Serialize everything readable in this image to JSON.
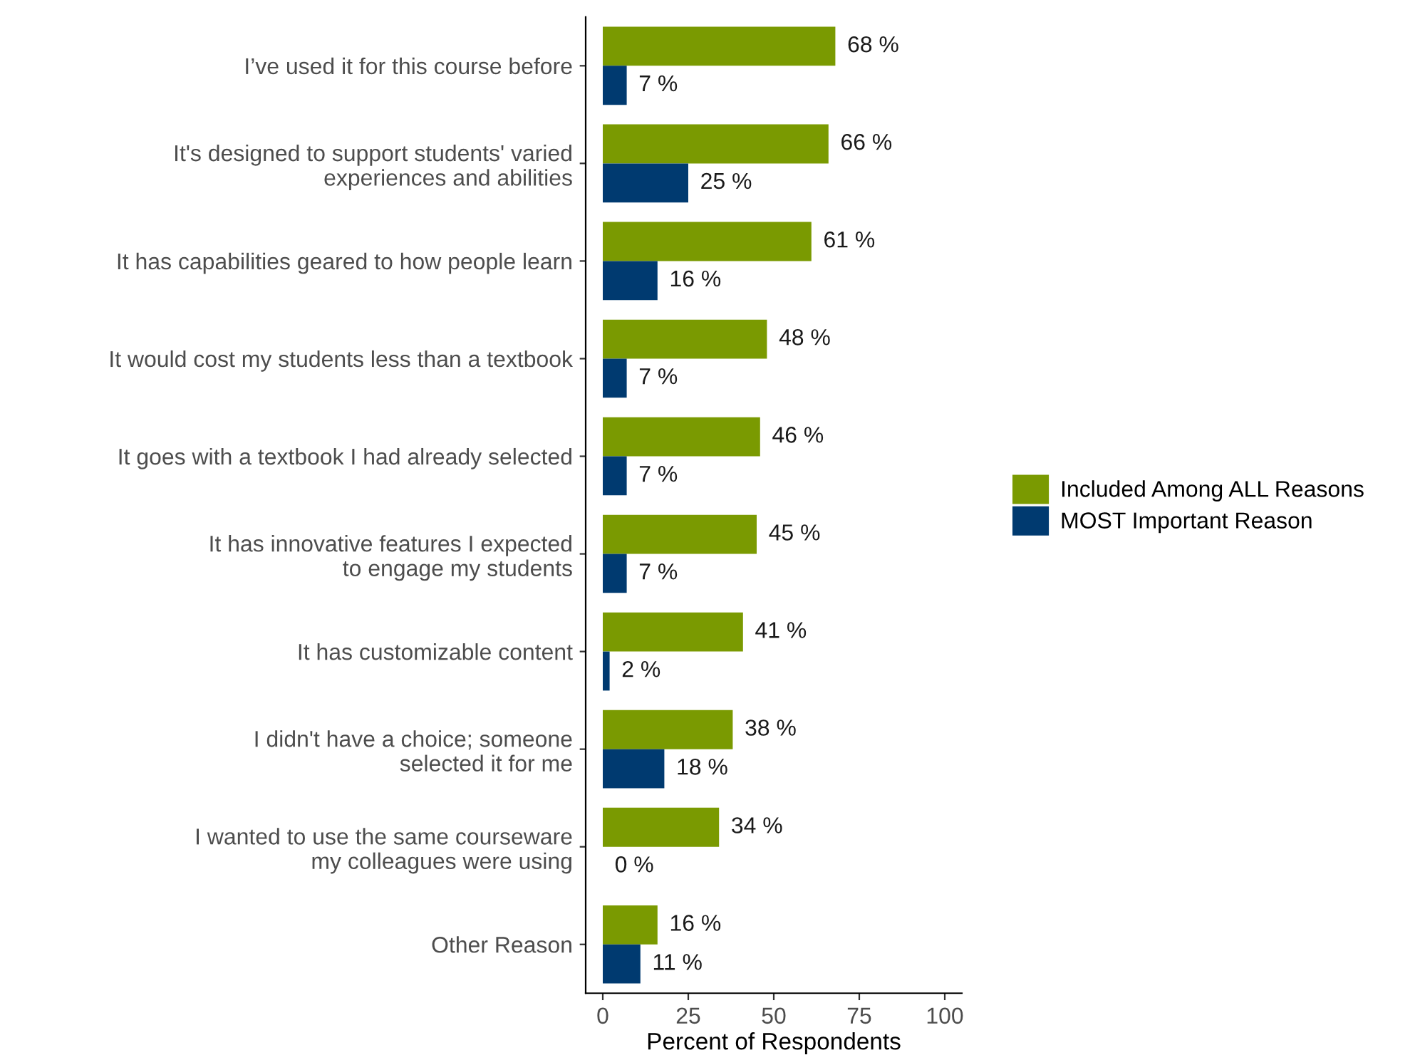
{
  "chart_data": {
    "type": "bar",
    "orientation": "horizontal",
    "xlabel": "Percent of Respondents",
    "categories": [
      "I’ve used it for this course before",
      "It's designed to support students' varied\nexperiences and abilities",
      "It has capabilities geared to how people learn",
      "It would cost my students less than a textbook",
      "It goes with a textbook I had already selected",
      "It has innovative features I expected\nto engage my students",
      "It has customizable content",
      "I didn't have a choice; someone\nselected it for me",
      "I wanted to use the same courseware\nmy colleagues were using",
      "Other Reason"
    ],
    "series": [
      {
        "name": "Included Among ALL Reasons",
        "color": "#7a9a01",
        "values": [
          68,
          66,
          61,
          48,
          46,
          45,
          41,
          38,
          34,
          16
        ],
        "value_labels": [
          "68 %",
          "66 %",
          "61 %",
          "48 %",
          "46 %",
          "45 %",
          "41 %",
          "38 %",
          "34 %",
          "16 %"
        ]
      },
      {
        "name": "MOST Important Reason",
        "color": "#003a70",
        "values": [
          7,
          25,
          16,
          7,
          7,
          7,
          2,
          18,
          0,
          11
        ],
        "value_labels": [
          "7 %",
          "25 %",
          "16 %",
          "7 %",
          "7 %",
          "7 %",
          "2 %",
          "18 %",
          "0 %",
          "11 %"
        ]
      }
    ],
    "xlim": [
      -5,
      105
    ],
    "xticks": [
      0,
      25,
      50,
      75,
      100
    ],
    "grid": false,
    "legend": "right"
  }
}
